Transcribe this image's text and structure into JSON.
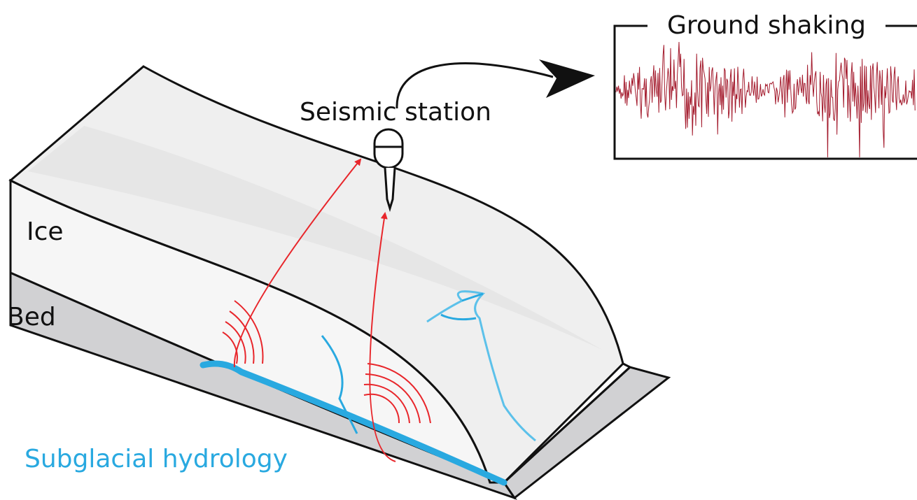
{
  "seismogram": {
    "title": "Ground shaking"
  },
  "station": {
    "label": "Seismic station"
  },
  "layers": {
    "ice": "Ice",
    "bed": "Bed"
  },
  "hydrology": {
    "label": "Subglacial hydrology"
  }
}
